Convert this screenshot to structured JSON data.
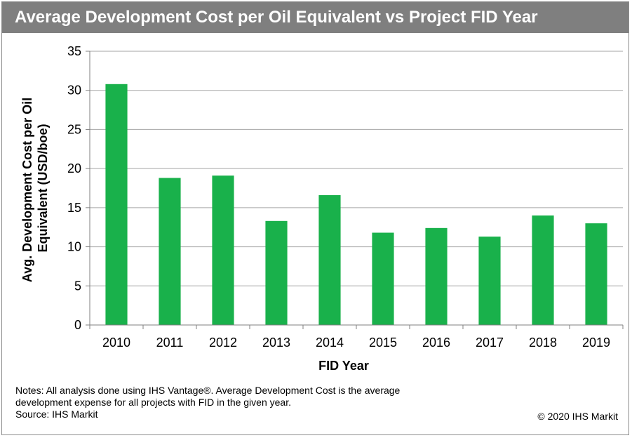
{
  "colors": {
    "title_bar": "#7f7f7f",
    "bar": "#19b14b",
    "gridline": "#a6a6a6",
    "axis": "#808080"
  },
  "chart_data": {
    "type": "bar",
    "title": "Average Development Cost per Oil Equivalent vs Project FID Year",
    "xlabel": "FID Year",
    "ylabel_lines": [
      "Avg. Development Cost per Oil",
      "Equivalent  (USD/boe)"
    ],
    "categories": [
      "2010",
      "2011",
      "2012",
      "2013",
      "2014",
      "2015",
      "2016",
      "2017",
      "2018",
      "2019"
    ],
    "values": [
      30.8,
      18.8,
      19.1,
      13.3,
      16.6,
      11.8,
      12.4,
      11.3,
      14.0,
      13.0
    ],
    "ylim": [
      0,
      35
    ],
    "yticks": [
      0,
      5,
      10,
      15,
      20,
      25,
      30,
      35
    ],
    "grid": true,
    "legend": "none"
  },
  "footer": {
    "notes_line1": "Notes: All analysis done using IHS Vantage®. Average Development Cost is the average",
    "notes_line2": "development expense for all projects with FID in the given year.",
    "source": "Source: IHS Markit",
    "copyright": "© 2020 IHS Markit"
  }
}
